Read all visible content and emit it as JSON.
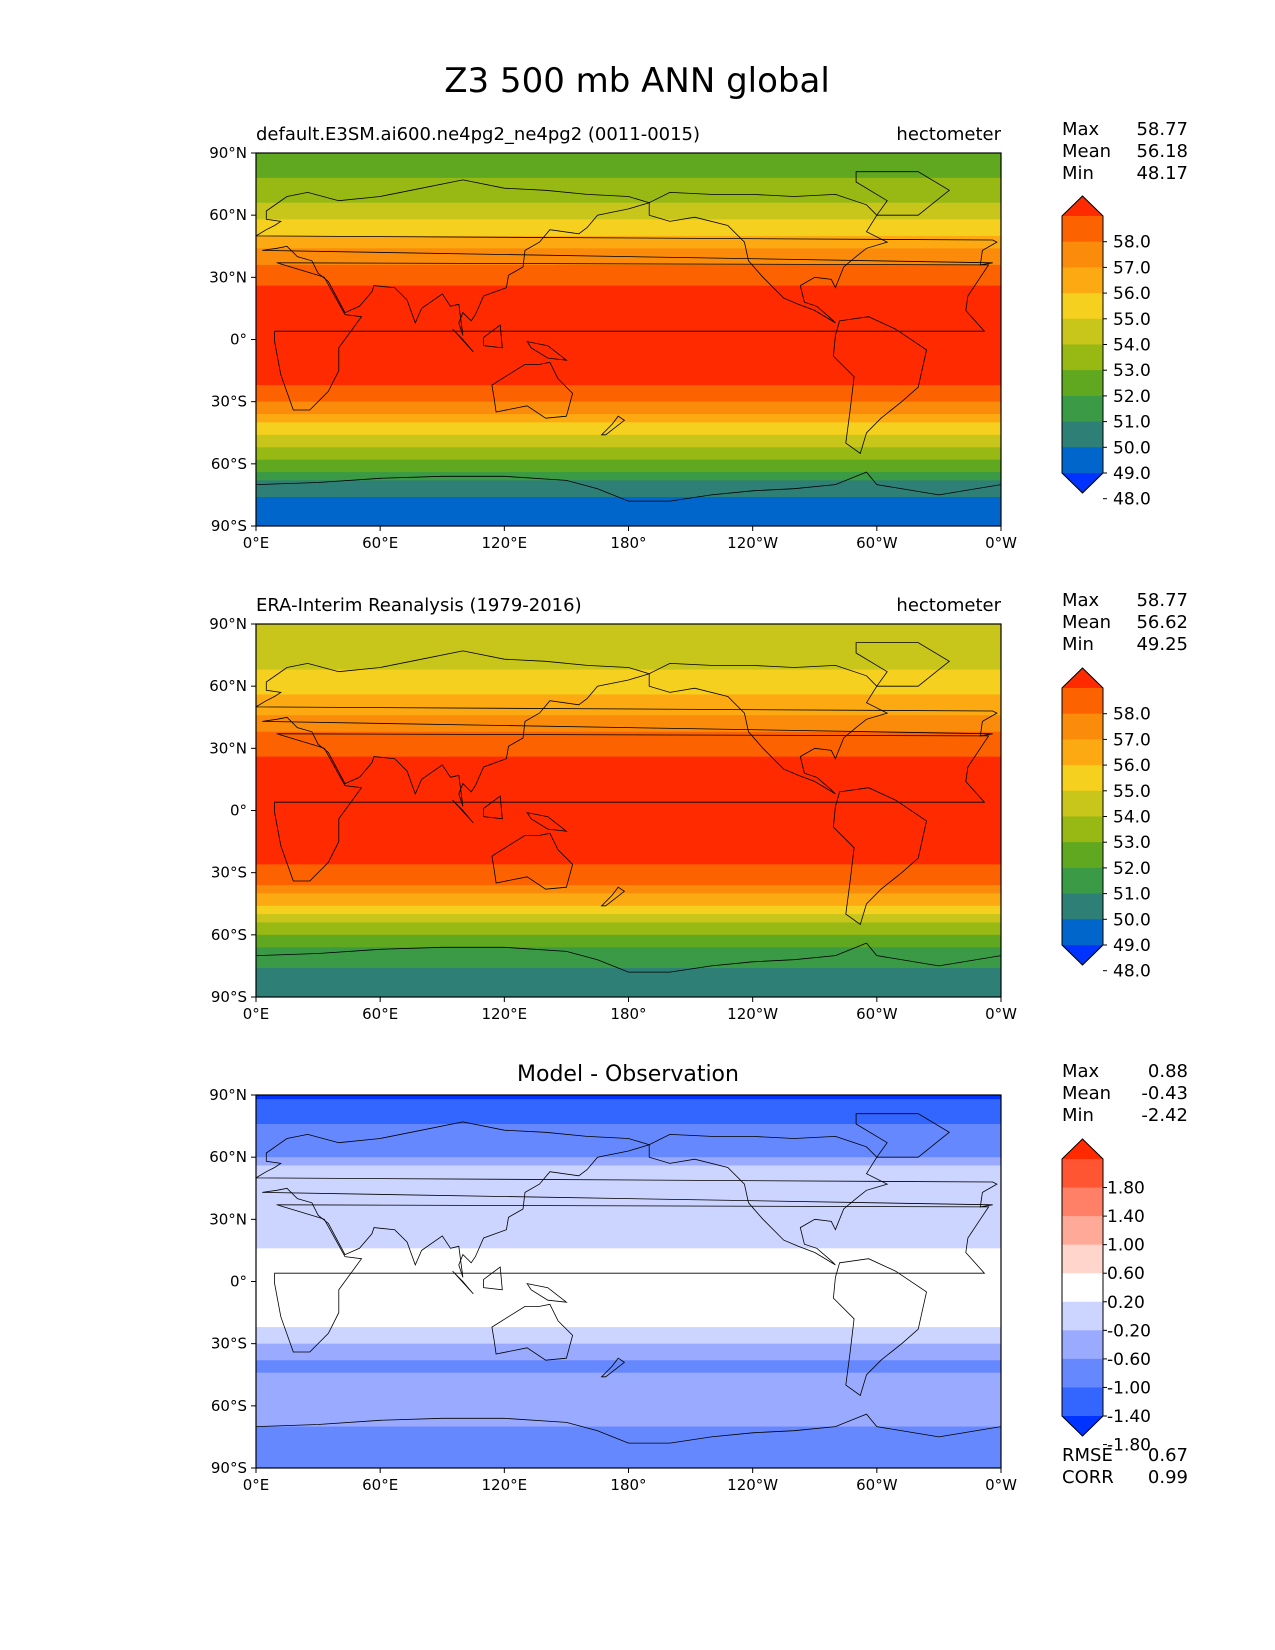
{
  "title": "Z3 500 mb ANN global",
  "colors": {
    "z3_levels": [
      "#0033ff",
      "#0066cc",
      "#2e8077",
      "#3a9a45",
      "#5fa820",
      "#98b914",
      "#c8c51b",
      "#f6d01e",
      "#fdaa12",
      "#fb8b0a",
      "#fd6200",
      "#ff2a00"
    ],
    "diff_levels": [
      "#0033ff",
      "#3366ff",
      "#6688ff",
      "#99aaff",
      "#ccd5ff",
      "#ffffff",
      "#ffd5cc",
      "#ffaa99",
      "#ff8066",
      "#ff5533",
      "#ff2a00"
    ]
  },
  "chart_data": [
    {
      "type": "heatmap",
      "panel": "model",
      "title_left": "default.E3SM.ai600.ne4pg2_ne4pg2 (0011-0015)",
      "title_right": "hectometer",
      "xticks": [
        "0°E",
        "60°E",
        "120°E",
        "180°",
        "120°W",
        "60°W",
        "0°W"
      ],
      "yticks": [
        "90°N",
        "60°N",
        "30°N",
        "0°",
        "30°S",
        "60°S",
        "90°S"
      ],
      "xlim": [
        0,
        360
      ],
      "ylim": [
        -90,
        90
      ],
      "stats": {
        "labels": [
          "Max",
          "Mean",
          "Min"
        ],
        "values": [
          "58.77",
          "56.18",
          "48.17"
        ]
      },
      "colorbar_ticks": [
        "58.0",
        "57.0",
        "56.0",
        "55.0",
        "54.0",
        "53.0",
        "52.0",
        "51.0",
        "50.0",
        "49.0",
        "48.0"
      ],
      "latitude_profile": {
        "lat": [
          90,
          80,
          70,
          60,
          50,
          40,
          30,
          20,
          10,
          0,
          -10,
          -20,
          -30,
          -40,
          -50,
          -60,
          -70,
          -80,
          -90
        ],
        "value": [
          51.2,
          51.9,
          52.6,
          53.6,
          55.0,
          56.6,
          57.7,
          58.4,
          58.5,
          58.5,
          58.5,
          58.3,
          57.2,
          55.1,
          53.2,
          51.6,
          49.6,
          48.6,
          48.3
        ]
      }
    },
    {
      "type": "heatmap",
      "panel": "observation",
      "title_left": "ERA-Interim Reanalysis (1979-2016)",
      "title_right": "hectometer",
      "xticks": [
        "0°E",
        "60°E",
        "120°E",
        "180°",
        "120°W",
        "60°W",
        "0°W"
      ],
      "yticks": [
        "90°N",
        "60°N",
        "30°N",
        "0°",
        "30°S",
        "60°S",
        "90°S"
      ],
      "xlim": [
        0,
        360
      ],
      "ylim": [
        -90,
        90
      ],
      "stats": {
        "labels": [
          "Max",
          "Mean",
          "Min"
        ],
        "values": [
          "58.77",
          "56.62",
          "49.25"
        ]
      },
      "colorbar_ticks": [
        "58.0",
        "57.0",
        "56.0",
        "55.0",
        "54.0",
        "53.0",
        "52.0",
        "51.0",
        "50.0",
        "49.0",
        "48.0"
      ],
      "latitude_profile": {
        "lat": [
          90,
          80,
          70,
          60,
          50,
          40,
          30,
          20,
          10,
          0,
          -10,
          -20,
          -30,
          -40,
          -50,
          -60,
          -70,
          -80,
          -90
        ],
        "value": [
          53.0,
          53.4,
          53.9,
          54.6,
          55.6,
          56.9,
          57.8,
          58.4,
          58.5,
          58.5,
          58.5,
          58.4,
          57.8,
          56.2,
          53.9,
          51.8,
          50.4,
          49.7,
          49.5
        ]
      }
    },
    {
      "type": "heatmap",
      "panel": "difference",
      "title": "Model - Observation",
      "xticks": [
        "0°E",
        "60°E",
        "120°E",
        "180°",
        "120°W",
        "60°W",
        "0°W"
      ],
      "yticks": [
        "90°N",
        "60°N",
        "30°N",
        "0°",
        "30°S",
        "60°S",
        "90°S"
      ],
      "xlim": [
        0,
        360
      ],
      "ylim": [
        -90,
        90
      ],
      "stats": {
        "labels": [
          "Max",
          "Mean",
          "Min"
        ],
        "values": [
          "0.88",
          "-0.43",
          "-2.42"
        ]
      },
      "colorbar_ticks": [
        "1.80",
        "1.40",
        "1.00",
        "0.60",
        "0.20",
        "-0.20",
        "-0.60",
        "-1.00",
        "-1.40",
        "-1.80"
      ],
      "metrics": {
        "labels": [
          "RMSE",
          "CORR"
        ],
        "values": [
          "0.67",
          "0.99"
        ]
      },
      "latitude_profile": {
        "lat": [
          90,
          80,
          70,
          60,
          50,
          40,
          30,
          20,
          10,
          0,
          -10,
          -20,
          -30,
          -40,
          -50,
          -60,
          -70,
          -80,
          -90
        ],
        "value": [
          -1.9,
          -1.5,
          -1.3,
          -1.0,
          -0.2,
          -0.3,
          -0.5,
          -0.4,
          0.0,
          0.0,
          0.0,
          -0.1,
          -0.6,
          -1.1,
          -0.9,
          -1.0,
          -1.0,
          -1.1,
          -1.2
        ]
      }
    }
  ]
}
